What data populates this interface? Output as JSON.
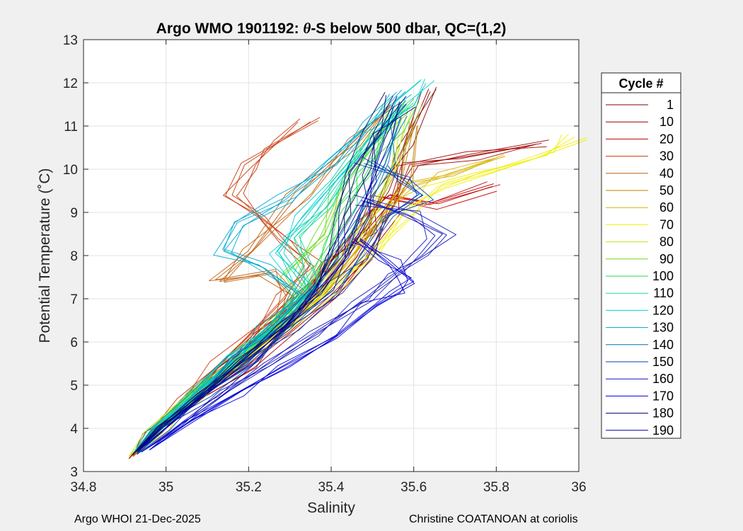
{
  "chart_data": {
    "type": "line",
    "title_prefix": "Argo WMO 1901192: ",
    "title_theta": "θ",
    "title_suffix": "-S below 500 dbar,  QC=(1,2)",
    "xlabel": "Salinity",
    "ylabel": "Potential Temperature (˚C)",
    "xlim": [
      34.8,
      36.0
    ],
    "ylim": [
      3,
      13
    ],
    "xticks": [
      34.8,
      35.0,
      35.2,
      35.4,
      35.6,
      35.8,
      36.0
    ],
    "xtick_labels": [
      "34.8",
      "35",
      "35.2",
      "35.4",
      "35.6",
      "35.8",
      "36"
    ],
    "yticks": [
      3,
      4,
      5,
      6,
      7,
      8,
      9,
      10,
      11,
      12,
      13
    ],
    "ytick_labels": [
      "3",
      "4",
      "5",
      "6",
      "7",
      "8",
      "9",
      "10",
      "11",
      "12",
      "13"
    ],
    "grid": true,
    "legend": {
      "title": "Cycle #",
      "position": "outside-right",
      "entries": [
        "1",
        "10",
        "20",
        "30",
        "40",
        "50",
        "60",
        "70",
        "80",
        "90",
        "100",
        "110",
        "120",
        "130",
        "140",
        "150",
        "160",
        "170",
        "180",
        "190"
      ],
      "colors": [
        "#7f0000",
        "#9e0000",
        "#be0000",
        "#c83a0a",
        "#c06010",
        "#c08000",
        "#d8b400",
        "#f0f000",
        "#b6ea1a",
        "#6cdc20",
        "#24dc48",
        "#18d8a0",
        "#00d0d0",
        "#00a8d0",
        "#0070b0",
        "#0040b8",
        "#1414c0",
        "#0000d8",
        "#000070",
        "#0000a0"
      ]
    },
    "series": [
      {
        "name": "1",
        "color": "#7f0000",
        "sal": [
          34.92,
          34.97,
          35.06,
          35.15,
          35.24,
          35.33,
          35.41,
          35.48,
          35.54,
          35.58,
          35.64
        ],
        "theta": [
          3.38,
          3.9,
          4.6,
          5.3,
          6.1,
          6.9,
          7.8,
          8.6,
          9.5,
          10.5,
          11.8
        ]
      },
      {
        "name": "10",
        "color": "#9e0000",
        "sal": [
          34.92,
          34.98,
          35.08,
          35.19,
          35.3,
          35.4,
          35.48,
          35.54,
          35.59,
          35.73,
          35.91
        ],
        "theta": [
          3.35,
          3.95,
          4.7,
          5.4,
          6.2,
          7.0,
          7.9,
          8.9,
          10.1,
          10.3,
          10.6
        ]
      },
      {
        "name": "20",
        "color": "#be0000",
        "sal": [
          34.91,
          34.96,
          35.05,
          35.14,
          35.23,
          35.32,
          35.4,
          35.47,
          35.54,
          35.66,
          35.79
        ],
        "theta": [
          3.3,
          3.85,
          4.6,
          5.4,
          6.2,
          7.0,
          7.9,
          8.8,
          9.4,
          9.2,
          9.6
        ]
      },
      {
        "name": "30",
        "color": "#c83a0a",
        "sal": [
          34.92,
          34.97,
          35.05,
          35.13,
          35.22,
          35.3,
          35.35,
          35.29,
          35.24,
          35.16,
          35.19,
          35.27,
          35.35
        ],
        "theta": [
          3.35,
          3.9,
          4.7,
          5.5,
          6.3,
          7.0,
          7.8,
          8.3,
          8.9,
          9.4,
          10.1,
          10.6,
          11.1
        ]
      },
      {
        "name": "40",
        "color": "#c06010",
        "sal": [
          34.92,
          34.97,
          35.06,
          35.15,
          35.25,
          35.3,
          35.25,
          35.13,
          35.21,
          35.32,
          35.45,
          35.55
        ],
        "theta": [
          3.35,
          3.9,
          4.6,
          5.4,
          6.2,
          7.1,
          7.6,
          7.4,
          8.1,
          9.4,
          10.6,
          11.5
        ]
      },
      {
        "name": "50",
        "color": "#c08000",
        "sal": [
          34.93,
          34.99,
          35.08,
          35.18,
          35.28,
          35.38,
          35.46,
          35.53,
          35.57,
          35.59
        ],
        "theta": [
          3.4,
          4.0,
          4.8,
          5.5,
          6.3,
          7.2,
          8.1,
          8.9,
          9.8,
          11.1
        ]
      },
      {
        "name": "60",
        "color": "#d8b400",
        "sal": [
          34.92,
          34.98,
          35.07,
          35.17,
          35.27,
          35.37,
          35.45,
          35.52,
          35.6,
          35.7,
          35.82
        ],
        "theta": [
          3.4,
          4.0,
          4.8,
          5.5,
          6.3,
          7.1,
          8.0,
          8.9,
          9.6,
          9.9,
          10.3
        ]
      },
      {
        "name": "70",
        "color": "#f0f000",
        "sal": [
          34.92,
          34.99,
          35.09,
          35.19,
          35.3,
          35.41,
          35.5,
          35.58,
          35.66,
          35.78,
          35.91,
          35.99
        ],
        "theta": [
          3.4,
          4.0,
          4.8,
          5.6,
          6.4,
          7.3,
          8.1,
          9.0,
          9.6,
          9.9,
          10.3,
          10.75
        ]
      },
      {
        "name": "80",
        "color": "#b6ea1a",
        "sal": [
          34.91,
          34.97,
          35.06,
          35.16,
          35.26,
          35.35,
          35.43,
          35.5,
          35.55,
          35.6
        ],
        "theta": [
          3.35,
          3.95,
          4.7,
          5.5,
          6.3,
          7.2,
          8.1,
          9.0,
          10.1,
          11.5
        ]
      },
      {
        "name": "90",
        "color": "#6cdc20",
        "sal": [
          34.92,
          34.98,
          35.07,
          35.17,
          35.26,
          35.34,
          35.31,
          35.36,
          35.43,
          35.5,
          35.56
        ],
        "theta": [
          3.4,
          4.0,
          4.8,
          5.6,
          6.4,
          7.1,
          7.6,
          8.5,
          9.6,
          10.6,
          11.3
        ]
      },
      {
        "name": "100",
        "color": "#24dc48",
        "sal": [
          34.92,
          34.98,
          35.07,
          35.17,
          35.27,
          35.35,
          35.4,
          35.44,
          35.49,
          35.54,
          35.58
        ],
        "theta": [
          3.4,
          4.0,
          4.8,
          5.6,
          6.4,
          7.3,
          8.2,
          9.1,
          10.0,
          10.9,
          11.6
        ]
      },
      {
        "name": "110",
        "color": "#18d8a0",
        "sal": [
          34.92,
          34.98,
          35.07,
          35.17,
          35.26,
          35.35,
          35.31,
          35.38,
          35.45,
          35.52,
          35.58
        ],
        "theta": [
          3.4,
          4.0,
          4.8,
          5.6,
          6.4,
          7.3,
          8.4,
          9.2,
          10.1,
          10.9,
          11.6
        ]
      },
      {
        "name": "120",
        "color": "#00d0d0",
        "sal": [
          34.92,
          34.98,
          35.07,
          35.17,
          35.26,
          35.34,
          35.27,
          35.33,
          35.41,
          35.5,
          35.58,
          35.65
        ],
        "theta": [
          3.4,
          4.0,
          4.8,
          5.6,
          6.4,
          7.2,
          8.1,
          8.9,
          9.8,
          10.8,
          11.5,
          12.05
        ]
      },
      {
        "name": "130",
        "color": "#00a8d0",
        "sal": [
          34.92,
          34.98,
          35.07,
          35.16,
          35.25,
          35.32,
          35.24,
          35.14,
          35.19,
          35.29,
          35.4,
          35.5,
          35.58
        ],
        "theta": [
          3.4,
          4.0,
          4.8,
          5.6,
          6.4,
          7.1,
          7.7,
          8.1,
          8.7,
          9.3,
          10.2,
          11.1,
          11.8
        ]
      },
      {
        "name": "140",
        "color": "#0070b0",
        "sal": [
          34.92,
          34.99,
          35.08,
          35.18,
          35.28,
          35.37,
          35.43,
          35.48,
          35.53,
          35.57
        ],
        "theta": [
          3.4,
          4.0,
          4.8,
          5.6,
          6.4,
          7.3,
          8.2,
          9.1,
          10.1,
          11.2
        ]
      },
      {
        "name": "150",
        "color": "#0040b8",
        "sal": [
          34.93,
          35.0,
          35.1,
          35.2,
          35.3,
          35.4,
          35.48,
          35.55,
          35.62,
          35.57,
          35.5
        ],
        "theta": [
          3.4,
          4.0,
          4.8,
          5.5,
          6.3,
          7.2,
          8.0,
          8.9,
          9.4,
          9.8,
          10.2
        ]
      },
      {
        "name": "160",
        "color": "#1414c0",
        "sal": [
          34.94,
          35.02,
          35.13,
          35.25,
          35.37,
          35.48,
          35.56,
          35.62,
          35.67,
          35.58,
          35.49
        ],
        "theta": [
          3.45,
          4.0,
          4.8,
          5.5,
          6.2,
          7.0,
          7.6,
          8.0,
          8.5,
          8.9,
          9.3
        ]
      },
      {
        "name": "170",
        "color": "#0000d8",
        "sal": [
          34.96,
          35.05,
          35.17,
          35.29,
          35.41,
          35.5,
          35.56,
          35.6,
          35.54,
          35.47
        ],
        "theta": [
          3.5,
          4.1,
          4.8,
          5.4,
          6.1,
          6.8,
          7.2,
          7.4,
          7.9,
          8.4
        ]
      },
      {
        "name": "180",
        "color": "#000070",
        "sal": [
          34.92,
          34.99,
          35.09,
          35.19,
          35.29,
          35.36,
          35.4,
          35.43,
          35.46,
          35.5,
          35.55
        ],
        "theta": [
          3.4,
          4.0,
          4.8,
          5.6,
          6.4,
          7.2,
          8.0,
          8.9,
          9.9,
          10.8,
          11.7
        ]
      },
      {
        "name": "190",
        "color": "#0000a0",
        "sal": [
          34.93,
          35.0,
          35.1,
          35.2,
          35.3,
          35.38,
          35.44,
          35.47,
          35.5,
          35.53,
          35.57
        ],
        "theta": [
          3.45,
          4.0,
          4.8,
          5.6,
          6.4,
          7.2,
          8.0,
          8.9,
          9.8,
          10.7,
          11.5
        ]
      }
    ]
  },
  "footer": {
    "left": "Argo WHOI 21-Dec-2025",
    "right": "Christine COATANOAN at coriolis"
  }
}
